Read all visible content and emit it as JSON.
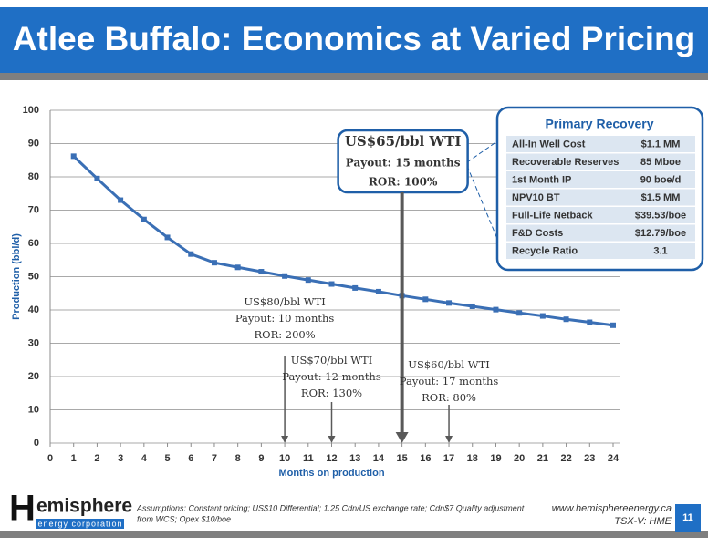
{
  "header": {
    "title": "Atlee Buffalo: Economics at Varied Pricing"
  },
  "chart_data": {
    "type": "line",
    "x_label": "Months on production",
    "y_label": "Production (bbl/d)",
    "x": [
      1,
      2,
      3,
      4,
      5,
      6,
      7,
      8,
      9,
      10,
      11,
      12,
      13,
      14,
      15,
      16,
      17,
      18,
      19,
      20,
      21,
      22,
      23,
      24
    ],
    "series": [
      {
        "name": "Production",
        "color": "#3a6fb5",
        "values": [
          86.2,
          79.5,
          73,
          67.2,
          61.8,
          56.8,
          54.2,
          52.8,
          51.5,
          50.2,
          49,
          47.8,
          46.6,
          45.5,
          44.3,
          43.2,
          42.1,
          41.1,
          40.1,
          39.1,
          38.2,
          37.2,
          36.3,
          35.4
        ]
      }
    ],
    "xlim": [
      0,
      24
    ],
    "xticks": [
      0,
      1,
      2,
      3,
      4,
      5,
      6,
      7,
      8,
      9,
      10,
      11,
      12,
      13,
      14,
      15,
      16,
      17,
      18,
      19,
      20,
      21,
      22,
      23,
      24
    ],
    "ylim": [
      0,
      100
    ],
    "yticks": [
      0,
      10,
      20,
      30,
      40,
      50,
      60,
      70,
      80,
      90,
      100
    ],
    "grid": true,
    "annotations": [
      {
        "x": 10,
        "lines": [
          "US$80/bbl WTI",
          "Payout: 10 months",
          "ROR: 200%"
        ]
      },
      {
        "x": 12,
        "lines": [
          "US$70/bbl WTI",
          "Payout: 12 months",
          "ROR: 130%"
        ]
      },
      {
        "x": 15,
        "lines": [
          "US$65/bbl WTI",
          "Payout: 15 months",
          "ROR: 100%"
        ],
        "boxed": true
      },
      {
        "x": 17,
        "lines": [
          "US$60/bbl WTI",
          "Payout: 17 months",
          "ROR: 80%"
        ]
      }
    ]
  },
  "table": {
    "title": "Primary Recovery",
    "rows": [
      [
        "All-In Well Cost",
        "$1.1 MM"
      ],
      [
        "Recoverable Reserves",
        "85 Mboe"
      ],
      [
        "1st Month IP",
        "90 boe/d"
      ],
      [
        "NPV10 BT",
        "$1.5 MM"
      ],
      [
        "Full-Life Netback",
        "$39.53/boe"
      ],
      [
        "F&D Costs",
        "$12.79/boe"
      ],
      [
        "Recycle Ratio",
        "3.1"
      ]
    ]
  },
  "footer": {
    "logo_initial": "H",
    "logo_rest": "emisphere",
    "logo_tag": "energy corporation",
    "note": [
      "Assumptions: Constant pricing; US$10 Differential; 1.25 Cdn/US exchange rate; Cdn$7 Quality adjustment",
      "from WCS; Opex $10/boe"
    ],
    "website": "www.hemisphereenergy.ca",
    "ticker": "TSX-V: HME",
    "page": "11"
  }
}
